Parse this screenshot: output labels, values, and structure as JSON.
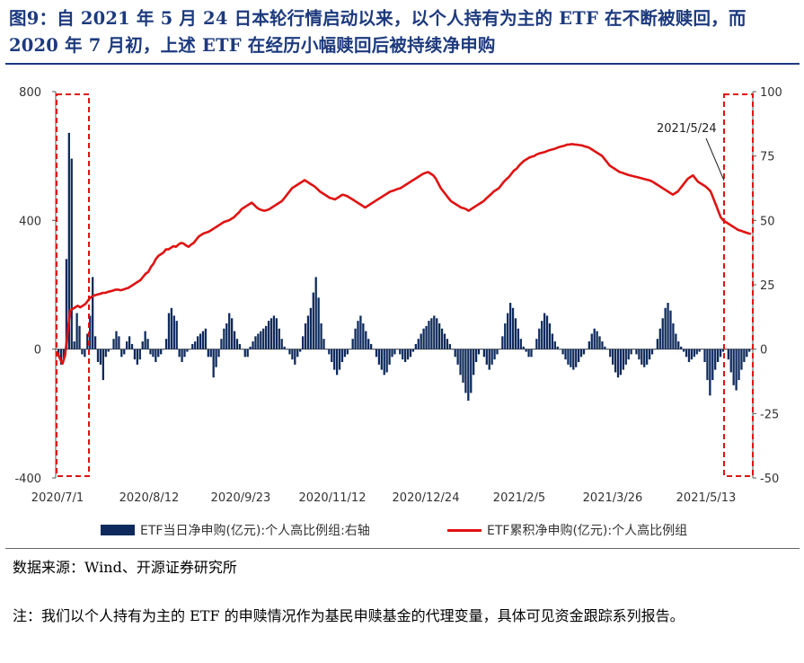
{
  "title": "图9：自 2021 年 5 月 24 日本轮行情启动以来，以个人持有为主的 ETF 在不断被赎回，而 2020 年 7 月初，上述 ETF 在经历小幅赎回后被持续净申购",
  "legend": {
    "bar_label": "ETF当日净申购(亿元):个人高比例组:右轴",
    "line_label": "ETF累积净申购(亿元):个人高比例组"
  },
  "annotation": "2021/5/24",
  "source": "数据来源：Wind、开源证券研究所",
  "note": "注：我们以个人持有为主的 ETF 的申赎情况作为基民申赎基金的代理变量，具体可见资金跟踪系列报告。",
  "colors": {
    "bar": "#0e2a5c",
    "line": "#e01212",
    "highlight": "#e01212",
    "title": "#1d3a7e"
  },
  "chart_data": {
    "type": "bar+line",
    "x_tick_labels": [
      "2020/7/1",
      "2020/8/12",
      "2020/9/23",
      "2020/11/12",
      "2020/12/24",
      "2021/2/5",
      "2021/3/26",
      "2021/5/13"
    ],
    "left_axis": {
      "ylim": [
        -400,
        800
      ],
      "ticks": [
        "-400",
        "0",
        "400",
        "800"
      ]
    },
    "right_axis": {
      "ylim": [
        -50,
        100
      ],
      "ticks": [
        "-50",
        "-25",
        "0",
        "25",
        "50",
        "75",
        "100"
      ]
    },
    "series": [
      {
        "name": "ETF当日净申购(亿元):个人高比例组:右轴",
        "type": "bar",
        "axis": "right",
        "values": [
          -2,
          -6,
          -4,
          35,
          84,
          74,
          3,
          14,
          9,
          -2,
          -3,
          6,
          13,
          28,
          5,
          -5,
          -6,
          -12,
          -3,
          -1,
          0,
          4,
          7,
          5,
          -3,
          -2,
          3,
          5,
          2,
          -4,
          -6,
          -4,
          3,
          7,
          4,
          -2,
          -3,
          -5,
          -3,
          -2,
          0,
          4,
          14,
          16,
          13,
          11,
          -3,
          -5,
          -3,
          -1,
          0,
          2,
          3,
          5,
          6,
          7,
          8,
          -3,
          -3,
          -11,
          -7,
          -3,
          4,
          8,
          10,
          14,
          12,
          7,
          4,
          2,
          0,
          -3,
          -3,
          1,
          3,
          5,
          6,
          7,
          8,
          9,
          11,
          12,
          13,
          12,
          8,
          4,
          1,
          0,
          -2,
          -4,
          -6,
          -3,
          -1,
          5,
          10,
          13,
          16,
          22,
          28,
          20,
          10,
          4,
          0,
          -2,
          -5,
          -8,
          -10,
          -8,
          -5,
          -3,
          -2,
          0,
          4,
          8,
          11,
          13,
          10,
          7,
          4,
          2,
          0,
          -3,
          -6,
          -8,
          -10,
          -9,
          -6,
          -3,
          -2,
          0,
          -2,
          -4,
          -5,
          -4,
          -3,
          -1,
          2,
          4,
          6,
          8,
          9,
          11,
          12,
          13,
          12,
          10,
          8,
          6,
          4,
          2,
          0,
          -3,
          -6,
          -10,
          -13,
          -17,
          -20,
          -17,
          -10,
          -5,
          -2,
          0,
          -3,
          -6,
          -8,
          -6,
          -4,
          -2,
          0,
          5,
          10,
          14,
          18,
          16,
          12,
          8,
          4,
          1,
          -1,
          -3,
          -3,
          0,
          4,
          8,
          11,
          14,
          13,
          10,
          6,
          3,
          1,
          0,
          -2,
          -4,
          -6,
          -7,
          -8,
          -7,
          -5,
          -3,
          -2,
          0,
          3,
          6,
          8,
          7,
          5,
          3,
          1,
          0,
          -3,
          -6,
          -9,
          -11,
          -10,
          -8,
          -6,
          -4,
          -2,
          0,
          -2,
          -4,
          -6,
          -7,
          -6,
          -4,
          -2,
          0,
          4,
          8,
          12,
          16,
          18,
          15,
          10,
          6,
          3,
          1,
          -1,
          -3,
          -5,
          -4,
          -3,
          -2,
          -1,
          0,
          -5,
          -12,
          -18,
          -12,
          -8,
          -5,
          -3,
          -1,
          0,
          -4,
          -9,
          -14,
          -16,
          -12,
          -8,
          -5,
          -3,
          -1
        ]
      },
      {
        "name": "ETF累积净申购(亿元):个人高比例组",
        "type": "line",
        "axis": "left",
        "values": [
          -10,
          -30,
          -45,
          -20,
          50,
          120,
          125,
          130,
          135,
          130,
          135,
          140,
          150,
          160,
          165,
          168,
          170,
          172,
          175,
          175,
          178,
          180,
          182,
          185,
          185,
          183,
          185,
          188,
          190,
          195,
          200,
          205,
          210,
          215,
          225,
          235,
          240,
          255,
          265,
          280,
          290,
          295,
          300,
          310,
          310,
          315,
          320,
          318,
          325,
          330,
          328,
          322,
          318,
          325,
          330,
          340,
          350,
          355,
          360,
          362,
          365,
          370,
          375,
          380,
          385,
          390,
          395,
          398,
          400,
          405,
          410,
          418,
          425,
          435,
          440,
          445,
          450,
          455,
          448,
          440,
          435,
          432,
          430,
          432,
          435,
          440,
          445,
          450,
          455,
          460,
          470,
          480,
          490,
          500,
          505,
          510,
          515,
          520,
          525,
          520,
          515,
          510,
          505,
          498,
          490,
          485,
          480,
          475,
          470,
          468,
          465,
          470,
          475,
          480,
          478,
          475,
          470,
          465,
          460,
          455,
          450,
          445,
          440,
          445,
          450,
          455,
          460,
          465,
          470,
          475,
          480,
          485,
          490,
          492,
          495,
          498,
          500,
          505,
          510,
          515,
          520,
          525,
          530,
          535,
          540,
          545,
          548,
          550,
          545,
          540,
          530,
          515,
          500,
          490,
          480,
          470,
          460,
          455,
          450,
          445,
          440,
          438,
          435,
          430,
          435,
          440,
          445,
          450,
          455,
          460,
          468,
          475,
          482,
          490,
          495,
          500,
          510,
          520,
          528,
          535,
          545,
          555,
          560,
          570,
          578,
          585,
          590,
          595,
          598,
          600,
          605,
          608,
          610,
          612,
          615,
          618,
          620,
          622,
          625,
          628,
          630,
          632,
          635,
          636,
          637,
          636,
          635,
          634,
          633,
          630,
          628,
          625,
          620,
          615,
          610,
          605,
          600,
          590,
          580,
          570,
          565,
          560,
          555,
          550,
          548,
          545,
          542,
          540,
          538,
          536,
          534,
          532,
          530,
          528,
          526,
          524,
          520,
          515,
          510,
          505,
          500,
          495,
          490,
          485,
          480,
          485,
          490,
          500,
          510,
          520,
          530,
          535,
          540,
          530,
          520,
          515,
          510,
          505,
          498,
          490,
          470,
          450,
          430,
          410,
          400,
          395,
          390,
          385,
          380,
          375,
          370,
          368,
          365,
          362,
          360,
          358
        ]
      }
    ]
  }
}
